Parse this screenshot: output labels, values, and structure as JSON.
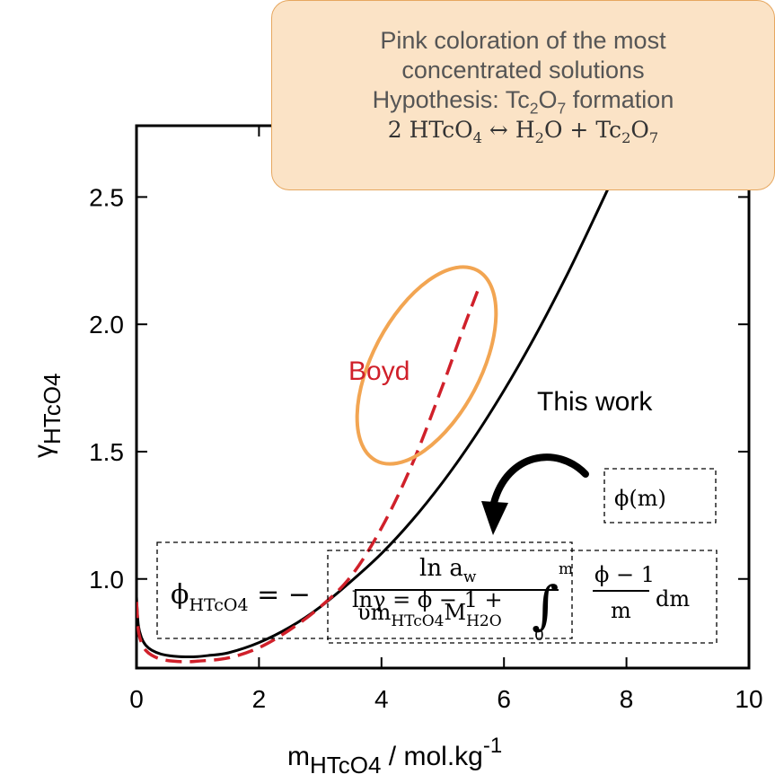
{
  "callout": {
    "line1": "Pink coloration of the most",
    "line2": "concentrated solutions",
    "hypothesis_prefix": "Hypothesis: Tc",
    "hypothesis_sub1": "2",
    "hypothesis_mid": "O",
    "hypothesis_sub2": "7",
    "hypothesis_suffix": " formation",
    "eq_a": "2 HTcO",
    "eq_a_sub": "4",
    "eq_arrow": " ↔ H",
    "eq_b_sub": "2",
    "eq_b": "O + Tc",
    "eq_c_sub": "2",
    "eq_c": "O",
    "eq_d_sub": "7"
  },
  "labels": {
    "boyd": "Boyd",
    "this_work": "This work",
    "phi_m": "ϕ(m)",
    "phi_main": "ϕ",
    "phi_sub": "HTcO4",
    "eq_sign": " = −",
    "ln_aw": "ln a",
    "ln_aw_sub": "w",
    "denominator": "υm",
    "denominator_sub1": "HTcO4",
    "denominator_m": "M",
    "denominator_sub2": "H2O",
    "ln_gamma": "lnγ = ϕ − 1 +",
    "integral": "∫",
    "integral_upper": "m",
    "integral_lower": "0",
    "frac_num": "ϕ − 1",
    "frac_den": "m",
    "dm": "dm"
  },
  "colors": {
    "this_work": "#000000",
    "boyd": "#d0202a",
    "ellipse": "#f2a552",
    "callout_fill": "#fbe3c6",
    "callout_border": "#e6a75f"
  },
  "chart_data": {
    "type": "line",
    "xlabel": "m",
    "xlabel_sub": "HTcO4",
    "xlabel_unit": " / mol.kg",
    "xlabel_sup": "-1",
    "ylabel": "γ",
    "ylabel_sub": "HTcO4",
    "xlim": [
      0,
      10
    ],
    "ylim": [
      0.65,
      2.78
    ],
    "x_ticks": [
      0,
      2,
      4,
      6,
      8,
      10
    ],
    "x_tick_labels": [
      "0",
      "2",
      "4",
      "6",
      "8",
      "10"
    ],
    "y_ticks": [
      1.0,
      1.5,
      2.0,
      2.5
    ],
    "y_tick_labels": [
      "1.0",
      "1.5",
      "2.0",
      "2.5"
    ],
    "grid": false,
    "series": [
      {
        "name": "This work",
        "style": "solid",
        "x": [
          0,
          0.03,
          0.08,
          0.15,
          0.25,
          0.4,
          0.6,
          0.8,
          1.0,
          1.2,
          1.5,
          2.0,
          2.5,
          3.0,
          3.5,
          4.0,
          4.5,
          5.0,
          5.5,
          6.0,
          6.5,
          7.0,
          7.5,
          8.0,
          8.2
        ],
        "y": [
          0.93,
          0.82,
          0.77,
          0.74,
          0.72,
          0.705,
          0.697,
          0.694,
          0.695,
          0.7,
          0.71,
          0.75,
          0.81,
          0.89,
          0.99,
          1.1,
          1.23,
          1.38,
          1.55,
          1.74,
          1.95,
          2.18,
          2.43,
          2.69,
          2.8
        ]
      },
      {
        "name": "Boyd",
        "style": "dashed",
        "x": [
          0.0,
          0.03,
          0.08,
          0.15,
          0.25,
          0.4,
          0.6,
          0.8,
          1.0,
          1.5,
          2.0,
          2.5,
          3.0,
          3.5,
          4.0,
          4.5,
          5.0,
          5.3,
          5.6
        ],
        "y": [
          0.91,
          0.8,
          0.75,
          0.72,
          0.7,
          0.685,
          0.677,
          0.675,
          0.677,
          0.69,
          0.73,
          0.8,
          0.89,
          1.01,
          1.2,
          1.45,
          1.76,
          1.96,
          2.15
        ]
      }
    ]
  }
}
